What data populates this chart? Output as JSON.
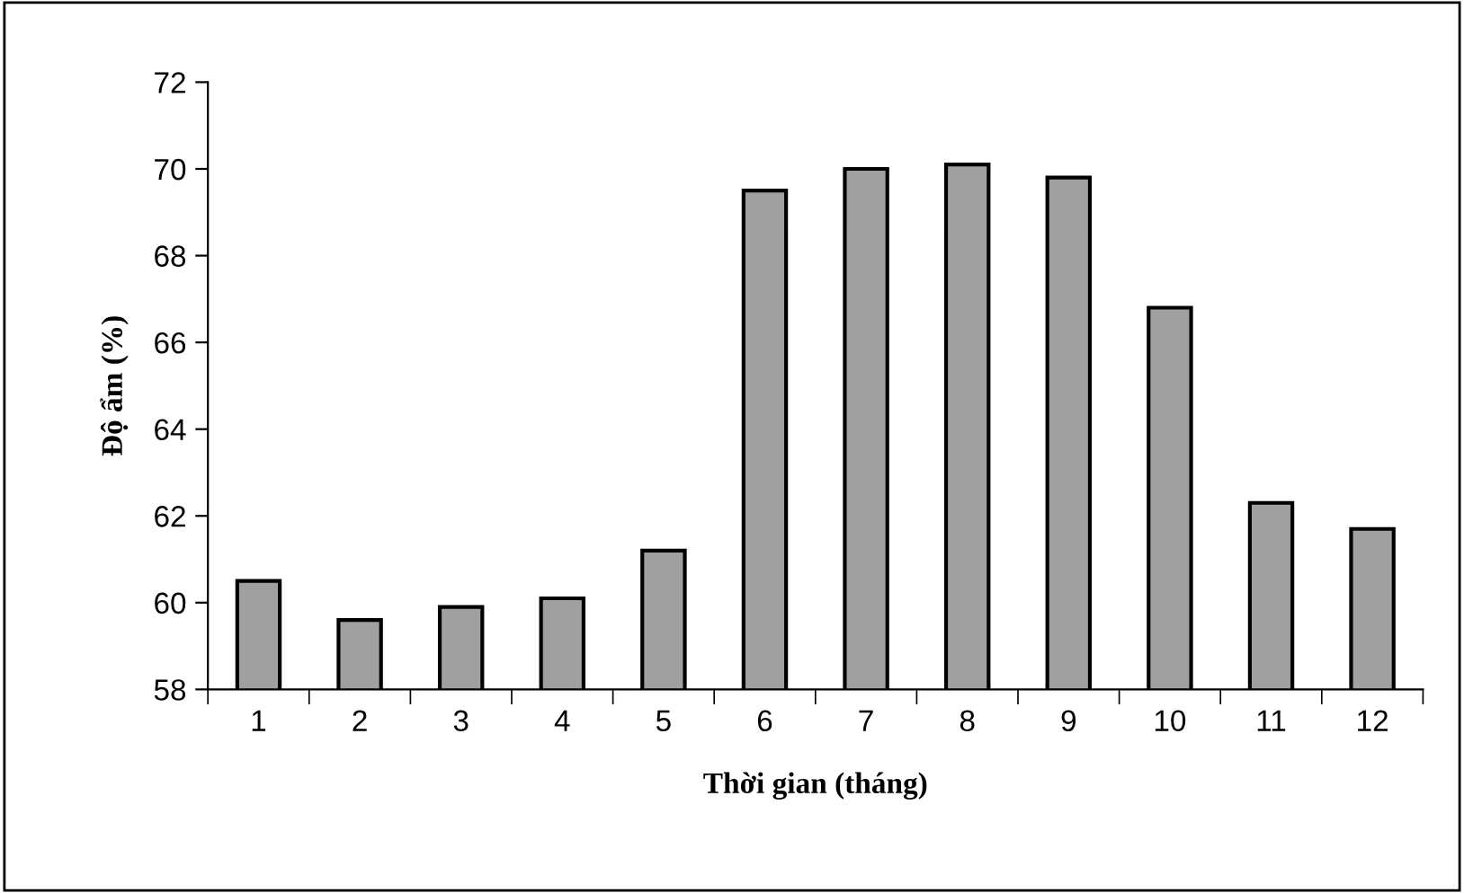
{
  "chart_data": {
    "type": "bar",
    "xlabel": "Thời gian (tháng)",
    "ylabel": "Độ ẩm (%)",
    "categories": [
      "1",
      "2",
      "3",
      "4",
      "5",
      "6",
      "7",
      "8",
      "9",
      "10",
      "11",
      "12"
    ],
    "values": [
      60.5,
      59.6,
      59.9,
      60.1,
      61.2,
      69.5,
      70.0,
      70.1,
      69.8,
      66.8,
      62.3,
      61.7
    ],
    "color": "#a0a0a0",
    "ylim": [
      58,
      72
    ],
    "yticks": [
      58,
      60,
      62,
      64,
      66,
      68,
      70,
      72
    ],
    "grid": false,
    "legend": false
  }
}
